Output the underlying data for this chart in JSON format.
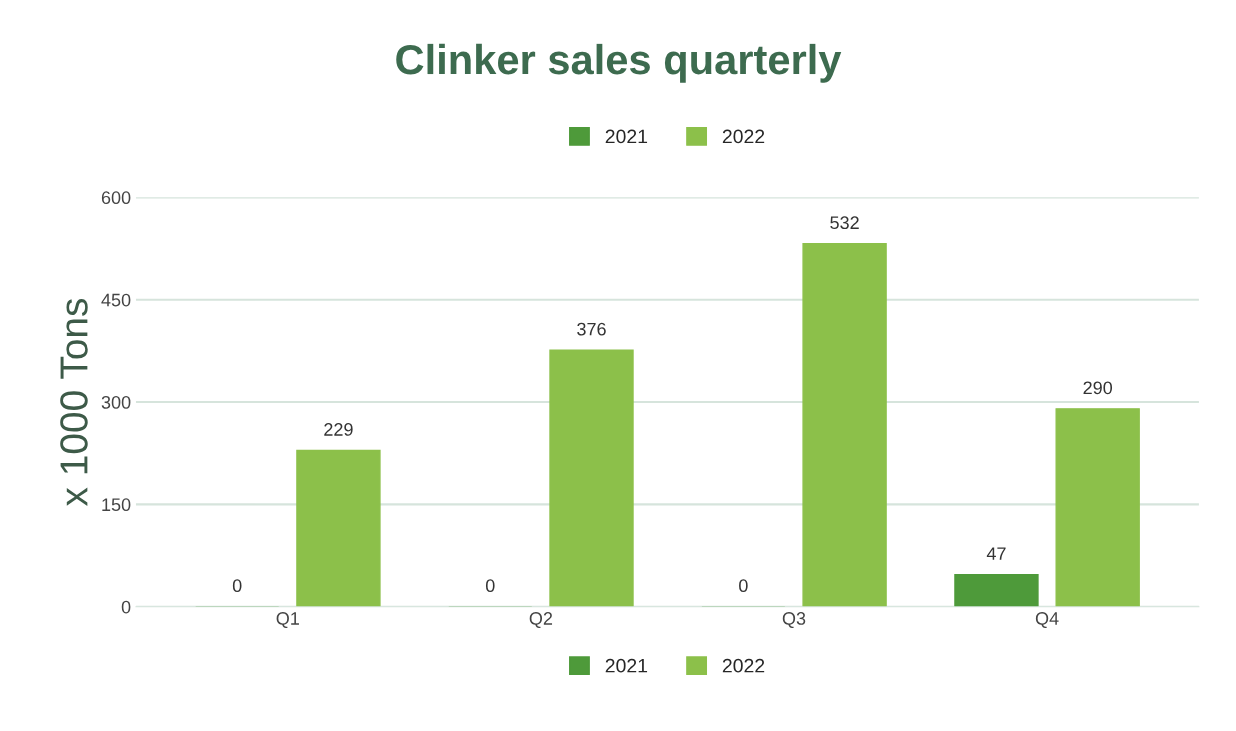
{
  "chart_data": {
    "type": "bar",
    "title": "Clinker sales quarterly",
    "ylabel": "x 1000 Tons",
    "categories": [
      "Q1",
      "Q2",
      "Q3",
      "Q4"
    ],
    "series": [
      {
        "name": "2021",
        "color": "#4e9a3a",
        "values": [
          0,
          0,
          0,
          47
        ]
      },
      {
        "name": "2022",
        "color": "#8cc04a",
        "values": [
          229,
          376,
          532,
          290
        ]
      }
    ],
    "ylim": [
      0,
      600
    ],
    "yticks": [
      0,
      150,
      300,
      450,
      600
    ],
    "grid": "y",
    "data_labels": true,
    "legend": [
      "top",
      "bottom"
    ]
  }
}
